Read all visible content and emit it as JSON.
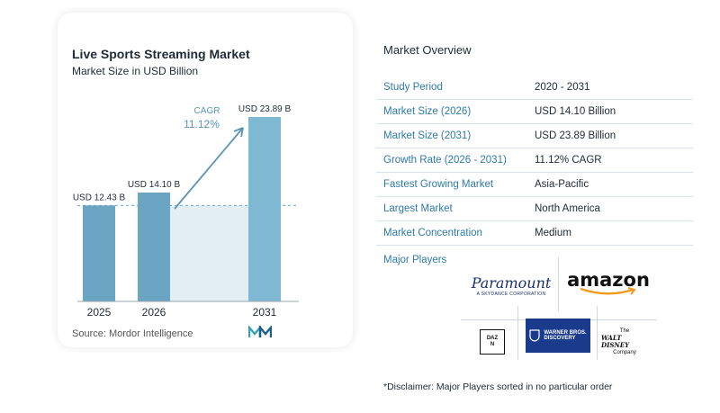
{
  "chart_data": {
    "type": "bar",
    "title": "Live Sports Streaming Market",
    "subtitle": "Market Size in USD Billion",
    "categories": [
      "2025",
      "2026",
      "2031"
    ],
    "values": [
      12.43,
      14.1,
      23.89
    ],
    "value_labels": [
      "USD 12.43 B",
      "USD 14.10 B",
      "USD 23.89 B"
    ],
    "cagr_label": "CAGR",
    "cagr_value": "11.12%",
    "source": "Source:  Mordor Intelligence",
    "bar_color": "#6aa6c4",
    "grid": false
  },
  "overview": {
    "title": "Market Overview",
    "rows": [
      {
        "label": "Study Period",
        "value": "2020 - 2031"
      },
      {
        "label": "Market Size (2026)",
        "value": "USD 14.10 Billion"
      },
      {
        "label": "Market Size (2031)",
        "value": "USD 23.89 Billion"
      },
      {
        "label": "Growth Rate (2026 - 2031)",
        "value": "11.12% CAGR"
      },
      {
        "label": "Fastest Growing Market",
        "value": "Asia-Pacific"
      },
      {
        "label": "Largest Market",
        "value": "North America"
      },
      {
        "label": "Market Concentration",
        "value": "Medium"
      }
    ]
  },
  "players": {
    "title": "Major Players",
    "paramount": "Paramount",
    "paramount_sub": "A SKYDANCE CORPORATION",
    "amazon": "amazon",
    "dazn": "DAZN",
    "warner_line1": "WARNER BROS.",
    "warner_line2": "DISCOVERY",
    "disney_the": "The",
    "disney_name": "WALT DISNEY",
    "disney_company": "Company"
  },
  "disclaimer": "*Disclaimer: Major Players sorted in no particular order",
  "colors": {
    "accent": "#2f7aa8",
    "bar": "#6aa6c4",
    "bar_highlight": "#7fb8d2",
    "area": "#e3eef4",
    "warner_bg": "#1a3a8c"
  }
}
